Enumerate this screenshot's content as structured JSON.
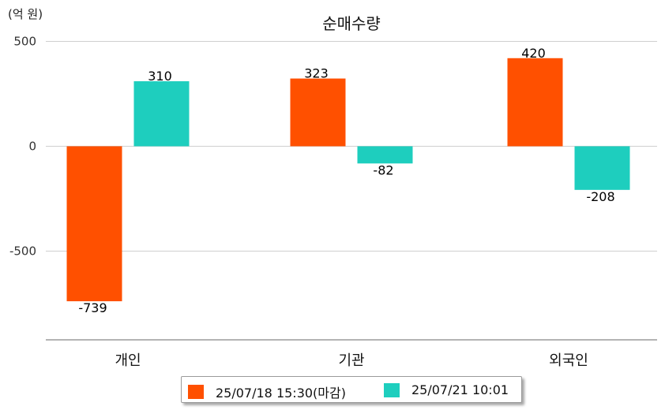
{
  "chart_data": {
    "type": "bar",
    "title": "순매수량",
    "unit_label": "(억 원)",
    "categories": [
      "개인",
      "기관",
      "외국인"
    ],
    "series": [
      {
        "name": "25/07/18 15:30(마감)",
        "color": "#ff5000",
        "values": [
          -739,
          323,
          420
        ]
      },
      {
        "name": "25/07/21 10:01",
        "color": "#1ecebe",
        "values": [
          310,
          -82,
          -208
        ]
      }
    ],
    "y_ticks": [
      500,
      0,
      -500
    ],
    "ylim": [
      -920,
      520
    ],
    "grid": true,
    "legend_position": "bottom"
  }
}
